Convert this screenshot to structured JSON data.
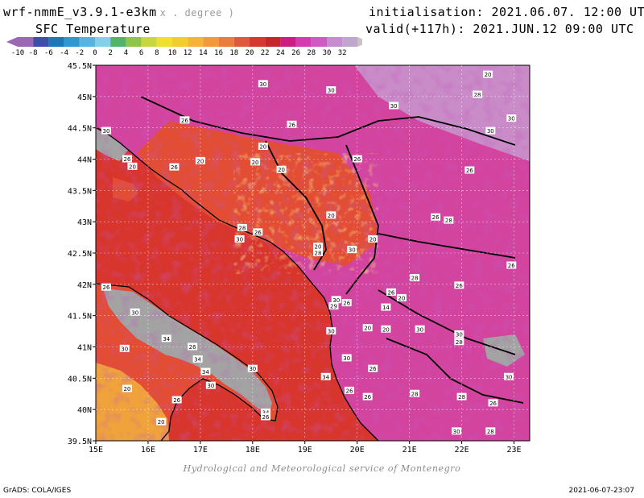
{
  "header": {
    "model": "wrf-nmmE_v3.9.1-e3km",
    "unit": "x . degree )",
    "field": "SFC Temperature",
    "init_line": "initialisation: 2021.06.07. 12:00 UTC",
    "valid_line": "valid(+117h): 2021.JUN.12 09:00 UTC"
  },
  "colorbar": {
    "labels": [
      "-10",
      "-8",
      "-6",
      "-4",
      "-2",
      "0",
      "2",
      "4",
      "6",
      "8",
      "10",
      "12",
      "14",
      "16",
      "18",
      "20",
      "22",
      "24",
      "26",
      "28",
      "30",
      "32"
    ],
    "colors": [
      "#9b68b3",
      "#3d4fa8",
      "#1e78b8",
      "#2f98d0",
      "#57b4e0",
      "#86cfe8",
      "#52b36a",
      "#90c54a",
      "#c8d640",
      "#eee02c",
      "#f3cc2e",
      "#f5b437",
      "#f29a3b",
      "#e97c3e",
      "#df5a3c",
      "#d4392f",
      "#c4262c",
      "#cc1d82",
      "#d43bb0",
      "#cf5ac4",
      "#c88ad0",
      "#c0a6cc"
    ]
  },
  "map": {
    "lon_labels": [
      "15E",
      "16E",
      "17E",
      "18E",
      "19E",
      "20E",
      "21E",
      "22E",
      "23E"
    ],
    "lat_labels": [
      "45.5N",
      "45N",
      "44.5N",
      "44N",
      "43.5N",
      "43N",
      "42.5N",
      "42N",
      "41.5N",
      "41N",
      "40.5N",
      "40N",
      "39.5N"
    ],
    "colors": {
      "sea": "#d8352c",
      "land_hot": "#d3449f",
      "land_warm": "#cf2c86",
      "land_very_hot": "#c98cc8",
      "land_orange": "#e24d34",
      "highland": "#f0a23b",
      "gray_mask": "#a3a3a3",
      "coast": "#000000"
    },
    "isotherm_labels": [
      {
        "text": "30",
        "lon": 18.2,
        "lat": 45.2
      },
      {
        "text": "30",
        "lon": 19.5,
        "lat": 45.1
      },
      {
        "text": "30",
        "lon": 20.7,
        "lat": 44.85
      },
      {
        "text": "20",
        "lon": 22.5,
        "lat": 45.35
      },
      {
        "text": "28",
        "lon": 22.3,
        "lat": 45.03
      },
      {
        "text": "30",
        "lon": 22.95,
        "lat": 44.65
      },
      {
        "text": "26",
        "lon": 16.7,
        "lat": 44.62
      },
      {
        "text": "30",
        "lon": 15.2,
        "lat": 44.45
      },
      {
        "text": "20",
        "lon": 18.2,
        "lat": 44.2
      },
      {
        "text": "26",
        "lon": 18.75,
        "lat": 44.55
      },
      {
        "text": "30",
        "lon": 22.55,
        "lat": 44.45
      },
      {
        "text": "26",
        "lon": 15.6,
        "lat": 44.0
      },
      {
        "text": "20",
        "lon": 15.7,
        "lat": 43.88
      },
      {
        "text": "26",
        "lon": 16.5,
        "lat": 43.87
      },
      {
        "text": "20",
        "lon": 17.0,
        "lat": 43.97
      },
      {
        "text": "20",
        "lon": 18.05,
        "lat": 43.95
      },
      {
        "text": "20",
        "lon": 18.55,
        "lat": 43.83
      },
      {
        "text": "26",
        "lon": 20.0,
        "lat": 44.0
      },
      {
        "text": "26",
        "lon": 22.15,
        "lat": 43.82
      },
      {
        "text": "20",
        "lon": 19.5,
        "lat": 43.1
      },
      {
        "text": "26",
        "lon": 21.5,
        "lat": 43.07
      },
      {
        "text": "28",
        "lon": 21.75,
        "lat": 43.02
      },
      {
        "text": "28",
        "lon": 17.8,
        "lat": 42.9
      },
      {
        "text": "26",
        "lon": 18.1,
        "lat": 42.83
      },
      {
        "text": "30",
        "lon": 17.75,
        "lat": 42.72
      },
      {
        "text": "20",
        "lon": 20.3,
        "lat": 42.72
      },
      {
        "text": "30",
        "lon": 19.9,
        "lat": 42.55
      },
      {
        "text": "20",
        "lon": 19.25,
        "lat": 42.6
      },
      {
        "text": "28",
        "lon": 19.25,
        "lat": 42.5
      },
      {
        "text": "26",
        "lon": 22.95,
        "lat": 42.3
      },
      {
        "text": "28",
        "lon": 21.1,
        "lat": 42.1
      },
      {
        "text": "26",
        "lon": 20.65,
        "lat": 41.87
      },
      {
        "text": "20",
        "lon": 20.85,
        "lat": 41.78
      },
      {
        "text": "26",
        "lon": 21.95,
        "lat": 41.98
      },
      {
        "text": "26",
        "lon": 15.2,
        "lat": 41.95
      },
      {
        "text": "30",
        "lon": 19.6,
        "lat": 41.75
      },
      {
        "text": "26",
        "lon": 19.8,
        "lat": 41.7
      },
      {
        "text": "29",
        "lon": 19.55,
        "lat": 41.65
      },
      {
        "text": "14",
        "lon": 20.55,
        "lat": 41.63
      },
      {
        "text": "30",
        "lon": 15.75,
        "lat": 41.55
      },
      {
        "text": "20",
        "lon": 20.2,
        "lat": 41.3
      },
      {
        "text": "20",
        "lon": 20.55,
        "lat": 41.28
      },
      {
        "text": "30",
        "lon": 21.2,
        "lat": 41.28
      },
      {
        "text": "30",
        "lon": 19.5,
        "lat": 41.25
      },
      {
        "text": "30",
        "lon": 21.95,
        "lat": 41.2
      },
      {
        "text": "28",
        "lon": 21.95,
        "lat": 41.08
      },
      {
        "text": "34",
        "lon": 16.35,
        "lat": 41.13
      },
      {
        "text": "26",
        "lon": 16.85,
        "lat": 41.0
      },
      {
        "text": "30",
        "lon": 15.55,
        "lat": 40.97
      },
      {
        "text": "34",
        "lon": 16.95,
        "lat": 40.8
      },
      {
        "text": "30",
        "lon": 19.8,
        "lat": 40.82
      },
      {
        "text": "26",
        "lon": 20.3,
        "lat": 40.65
      },
      {
        "text": "30",
        "lon": 18.0,
        "lat": 40.65
      },
      {
        "text": "34",
        "lon": 17.1,
        "lat": 40.6
      },
      {
        "text": "30",
        "lon": 17.2,
        "lat": 40.38
      },
      {
        "text": "34",
        "lon": 19.4,
        "lat": 40.52
      },
      {
        "text": "30",
        "lon": 22.9,
        "lat": 40.52
      },
      {
        "text": "20",
        "lon": 15.6,
        "lat": 40.33
      },
      {
        "text": "26",
        "lon": 19.85,
        "lat": 40.3
      },
      {
        "text": "26",
        "lon": 20.2,
        "lat": 40.2
      },
      {
        "text": "28",
        "lon": 21.1,
        "lat": 40.25
      },
      {
        "text": "28",
        "lon": 22.0,
        "lat": 40.2
      },
      {
        "text": "26",
        "lon": 16.55,
        "lat": 40.15
      },
      {
        "text": "26",
        "lon": 22.6,
        "lat": 40.1
      },
      {
        "text": "34",
        "lon": 18.25,
        "lat": 39.95
      },
      {
        "text": "20",
        "lon": 16.25,
        "lat": 39.8
      },
      {
        "text": "30",
        "lon": 21.9,
        "lat": 39.65
      },
      {
        "text": "28",
        "lon": 22.55,
        "lat": 39.65
      },
      {
        "text": "26",
        "lon": 18.25,
        "lat": 39.88
      }
    ]
  },
  "footer": {
    "credit": "Hydrological and Meteorological service of Montenegro",
    "software": "GrADS: COLA/IGES",
    "timestamp": "2021-06-07-23:07"
  }
}
